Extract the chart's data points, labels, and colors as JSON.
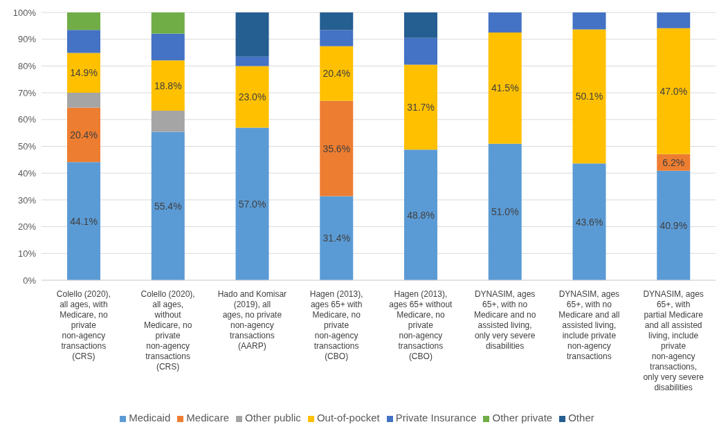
{
  "chart_data": {
    "type": "bar",
    "stacked": true,
    "categories": [
      "Colello (2020), all ages, with Medicare, no private non-agency transactions (CRS)",
      "Colello (2020), all ages, without Medicare, no private non-agency transactions (CRS)",
      "Hado and Komisar (2019), all ages,  no private non-agency transactions (AARP)",
      "Hagen (2013), ages 65+ with Medicare,  no private non-agency transactions (CBO)",
      "Hagen (2013), ages 65+ without Medicare,  no private non-agency transactions (CBO)",
      "DYNASIM, ages 65+, with no Medicare and no assisted living, only very severe disabilities",
      "DYNASIM, ages 65+, with no Medicare and all assisted living, include private non-agency transactions",
      "DYNASIM, ages 65+, with partial Medicare and all assisted living, include private non-agency transactions, only very severe disabilities"
    ],
    "series": [
      {
        "name": "Medicaid",
        "color": "#5b9bd5",
        "values": [
          44.1,
          55.4,
          57.0,
          31.4,
          48.8,
          51.0,
          43.6,
          40.9
        ],
        "value_labels": [
          "44.1%",
          "55.4%",
          "57.0%",
          "31.4%",
          "48.8%",
          "51.0%",
          "43.6%",
          "40.9%"
        ]
      },
      {
        "name": "Medicare",
        "color": "#ed7d31",
        "values": [
          20.4,
          null,
          null,
          35.6,
          null,
          null,
          null,
          6.2
        ],
        "value_labels": [
          "20.4%",
          null,
          null,
          "35.6%",
          null,
          null,
          null,
          "6.2%"
        ]
      },
      {
        "name": "Other public",
        "color": "#a5a5a5",
        "values": [
          5.5,
          7.9,
          null,
          null,
          null,
          null,
          null,
          null
        ]
      },
      {
        "name": "Out-of-pocket",
        "color": "#ffc000",
        "values": [
          14.9,
          18.8,
          23.0,
          20.4,
          31.7,
          41.5,
          50.1,
          47.0
        ],
        "value_labels": [
          "14.9%",
          "18.8%",
          "23.0%",
          "20.4%",
          "31.7%",
          "41.5%",
          "50.1%",
          "47.0%"
        ]
      },
      {
        "name": "Private Insurance",
        "color": "#4472c4",
        "values": [
          8.6,
          10.0,
          3.5,
          6.0,
          10.0,
          7.5,
          6.3,
          5.9
        ]
      },
      {
        "name": "Other private",
        "color": "#70ad47",
        "values": [
          6.5,
          7.9,
          null,
          null,
          null,
          null,
          null,
          null
        ]
      },
      {
        "name": "Other",
        "color": "#255e91",
        "values": [
          null,
          null,
          16.5,
          6.6,
          9.5,
          null,
          null,
          null
        ]
      }
    ],
    "ylim": [
      0,
      100
    ],
    "yticks": [
      {
        "value": 0,
        "label": "0%"
      },
      {
        "value": 10,
        "label": "10%"
      },
      {
        "value": 20,
        "label": "20%"
      },
      {
        "value": 30,
        "label": "30%"
      },
      {
        "value": 40,
        "label": "40%"
      },
      {
        "value": 50,
        "label": "50%"
      },
      {
        "value": 60,
        "label": "60%"
      },
      {
        "value": 70,
        "label": "70%"
      },
      {
        "value": 80,
        "label": "80%"
      },
      {
        "value": 90,
        "label": "90%"
      },
      {
        "value": 100,
        "label": "100%"
      }
    ],
    "grid": "y",
    "legend": "bottom"
  }
}
